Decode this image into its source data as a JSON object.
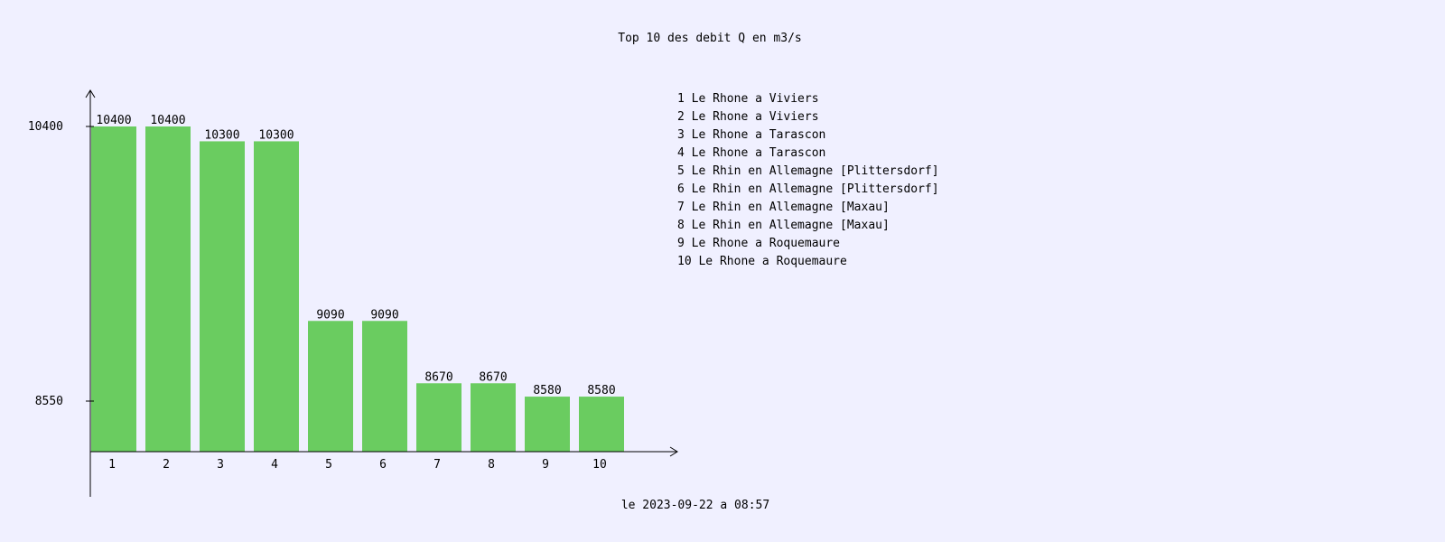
{
  "chart_data": {
    "type": "bar",
    "title": "Top 10 des debit Q en m3/s",
    "footer": "le 2023-09-22 a 08:57",
    "categories": [
      "1",
      "2",
      "3",
      "4",
      "5",
      "6",
      "7",
      "8",
      "9",
      "10"
    ],
    "values": [
      10400,
      10400,
      10300,
      10300,
      9090,
      9090,
      8670,
      8670,
      8580,
      8580
    ],
    "y_ticks": [
      {
        "value": 10400,
        "label": "10400"
      },
      {
        "value": 8550,
        "label": "8550"
      }
    ],
    "ylim": [
      8200,
      10600
    ],
    "grid": false,
    "legend_position": "top-right",
    "legend": [
      "1 Le Rhone a Viviers",
      "2 Le Rhone a Viviers",
      "3 Le Rhone a Tarascon",
      "4 Le Rhone a Tarascon",
      "5 Le Rhin en Allemagne [Plittersdorf]",
      "6 Le Rhin en Allemagne [Plittersdorf]",
      "7 Le Rhin en Allemagne [Maxau]",
      "8 Le Rhin en Allemagne [Maxau]",
      "9 Le Rhone a Roquemaure",
      "10 Le Rhone a Roquemaure"
    ],
    "colors": {
      "background": "#f0f0ff",
      "bar": "#6acc60",
      "axis": "#000000",
      "text": "#000000"
    }
  }
}
